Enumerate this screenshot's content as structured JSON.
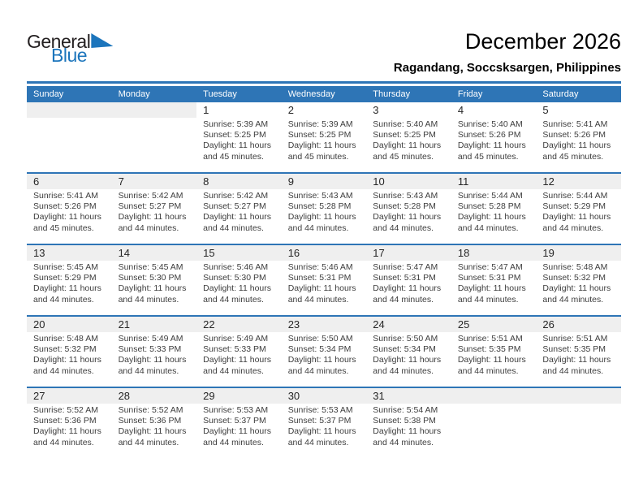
{
  "logo": {
    "general": "General",
    "blue": "Blue"
  },
  "header": {
    "title": "December 2026",
    "subtitle": "Ragandang, Soccsksargen, Philippines"
  },
  "weekdays": [
    "Sunday",
    "Monday",
    "Tuesday",
    "Wednesday",
    "Thursday",
    "Friday",
    "Saturday"
  ],
  "weeks": [
    [
      null,
      null,
      {
        "num": "1",
        "lines": [
          "Sunrise: 5:39 AM",
          "Sunset: 5:25 PM",
          "Daylight: 11 hours",
          "and 45 minutes."
        ]
      },
      {
        "num": "2",
        "lines": [
          "Sunrise: 5:39 AM",
          "Sunset: 5:25 PM",
          "Daylight: 11 hours",
          "and 45 minutes."
        ]
      },
      {
        "num": "3",
        "lines": [
          "Sunrise: 5:40 AM",
          "Sunset: 5:25 PM",
          "Daylight: 11 hours",
          "and 45 minutes."
        ]
      },
      {
        "num": "4",
        "lines": [
          "Sunrise: 5:40 AM",
          "Sunset: 5:26 PM",
          "Daylight: 11 hours",
          "and 45 minutes."
        ]
      },
      {
        "num": "5",
        "lines": [
          "Sunrise: 5:41 AM",
          "Sunset: 5:26 PM",
          "Daylight: 11 hours",
          "and 45 minutes."
        ]
      }
    ],
    [
      {
        "num": "6",
        "lines": [
          "Sunrise: 5:41 AM",
          "Sunset: 5:26 PM",
          "Daylight: 11 hours",
          "and 45 minutes."
        ]
      },
      {
        "num": "7",
        "lines": [
          "Sunrise: 5:42 AM",
          "Sunset: 5:27 PM",
          "Daylight: 11 hours",
          "and 44 minutes."
        ]
      },
      {
        "num": "8",
        "lines": [
          "Sunrise: 5:42 AM",
          "Sunset: 5:27 PM",
          "Daylight: 11 hours",
          "and 44 minutes."
        ]
      },
      {
        "num": "9",
        "lines": [
          "Sunrise: 5:43 AM",
          "Sunset: 5:28 PM",
          "Daylight: 11 hours",
          "and 44 minutes."
        ]
      },
      {
        "num": "10",
        "lines": [
          "Sunrise: 5:43 AM",
          "Sunset: 5:28 PM",
          "Daylight: 11 hours",
          "and 44 minutes."
        ]
      },
      {
        "num": "11",
        "lines": [
          "Sunrise: 5:44 AM",
          "Sunset: 5:28 PM",
          "Daylight: 11 hours",
          "and 44 minutes."
        ]
      },
      {
        "num": "12",
        "lines": [
          "Sunrise: 5:44 AM",
          "Sunset: 5:29 PM",
          "Daylight: 11 hours",
          "and 44 minutes."
        ]
      }
    ],
    [
      {
        "num": "13",
        "lines": [
          "Sunrise: 5:45 AM",
          "Sunset: 5:29 PM",
          "Daylight: 11 hours",
          "and 44 minutes."
        ]
      },
      {
        "num": "14",
        "lines": [
          "Sunrise: 5:45 AM",
          "Sunset: 5:30 PM",
          "Daylight: 11 hours",
          "and 44 minutes."
        ]
      },
      {
        "num": "15",
        "lines": [
          "Sunrise: 5:46 AM",
          "Sunset: 5:30 PM",
          "Daylight: 11 hours",
          "and 44 minutes."
        ]
      },
      {
        "num": "16",
        "lines": [
          "Sunrise: 5:46 AM",
          "Sunset: 5:31 PM",
          "Daylight: 11 hours",
          "and 44 minutes."
        ]
      },
      {
        "num": "17",
        "lines": [
          "Sunrise: 5:47 AM",
          "Sunset: 5:31 PM",
          "Daylight: 11 hours",
          "and 44 minutes."
        ]
      },
      {
        "num": "18",
        "lines": [
          "Sunrise: 5:47 AM",
          "Sunset: 5:31 PM",
          "Daylight: 11 hours",
          "and 44 minutes."
        ]
      },
      {
        "num": "19",
        "lines": [
          "Sunrise: 5:48 AM",
          "Sunset: 5:32 PM",
          "Daylight: 11 hours",
          "and 44 minutes."
        ]
      }
    ],
    [
      {
        "num": "20",
        "lines": [
          "Sunrise: 5:48 AM",
          "Sunset: 5:32 PM",
          "Daylight: 11 hours",
          "and 44 minutes."
        ]
      },
      {
        "num": "21",
        "lines": [
          "Sunrise: 5:49 AM",
          "Sunset: 5:33 PM",
          "Daylight: 11 hours",
          "and 44 minutes."
        ]
      },
      {
        "num": "22",
        "lines": [
          "Sunrise: 5:49 AM",
          "Sunset: 5:33 PM",
          "Daylight: 11 hours",
          "and 44 minutes."
        ]
      },
      {
        "num": "23",
        "lines": [
          "Sunrise: 5:50 AM",
          "Sunset: 5:34 PM",
          "Daylight: 11 hours",
          "and 44 minutes."
        ]
      },
      {
        "num": "24",
        "lines": [
          "Sunrise: 5:50 AM",
          "Sunset: 5:34 PM",
          "Daylight: 11 hours",
          "and 44 minutes."
        ]
      },
      {
        "num": "25",
        "lines": [
          "Sunrise: 5:51 AM",
          "Sunset: 5:35 PM",
          "Daylight: 11 hours",
          "and 44 minutes."
        ]
      },
      {
        "num": "26",
        "lines": [
          "Sunrise: 5:51 AM",
          "Sunset: 5:35 PM",
          "Daylight: 11 hours",
          "and 44 minutes."
        ]
      }
    ],
    [
      {
        "num": "27",
        "lines": [
          "Sunrise: 5:52 AM",
          "Sunset: 5:36 PM",
          "Daylight: 11 hours",
          "and 44 minutes."
        ]
      },
      {
        "num": "28",
        "lines": [
          "Sunrise: 5:52 AM",
          "Sunset: 5:36 PM",
          "Daylight: 11 hours",
          "and 44 minutes."
        ]
      },
      {
        "num": "29",
        "lines": [
          "Sunrise: 5:53 AM",
          "Sunset: 5:37 PM",
          "Daylight: 11 hours",
          "and 44 minutes."
        ]
      },
      {
        "num": "30",
        "lines": [
          "Sunrise: 5:53 AM",
          "Sunset: 5:37 PM",
          "Daylight: 11 hours",
          "and 44 minutes."
        ]
      },
      {
        "num": "31",
        "lines": [
          "Sunrise: 5:54 AM",
          "Sunset: 5:38 PM",
          "Daylight: 11 hours",
          "and 44 minutes."
        ]
      },
      null,
      null
    ]
  ],
  "colors": {
    "accent_blue": "#2E75B6",
    "logo_blue": "#1C75BC",
    "strip_gray": "#EFEFEF"
  }
}
